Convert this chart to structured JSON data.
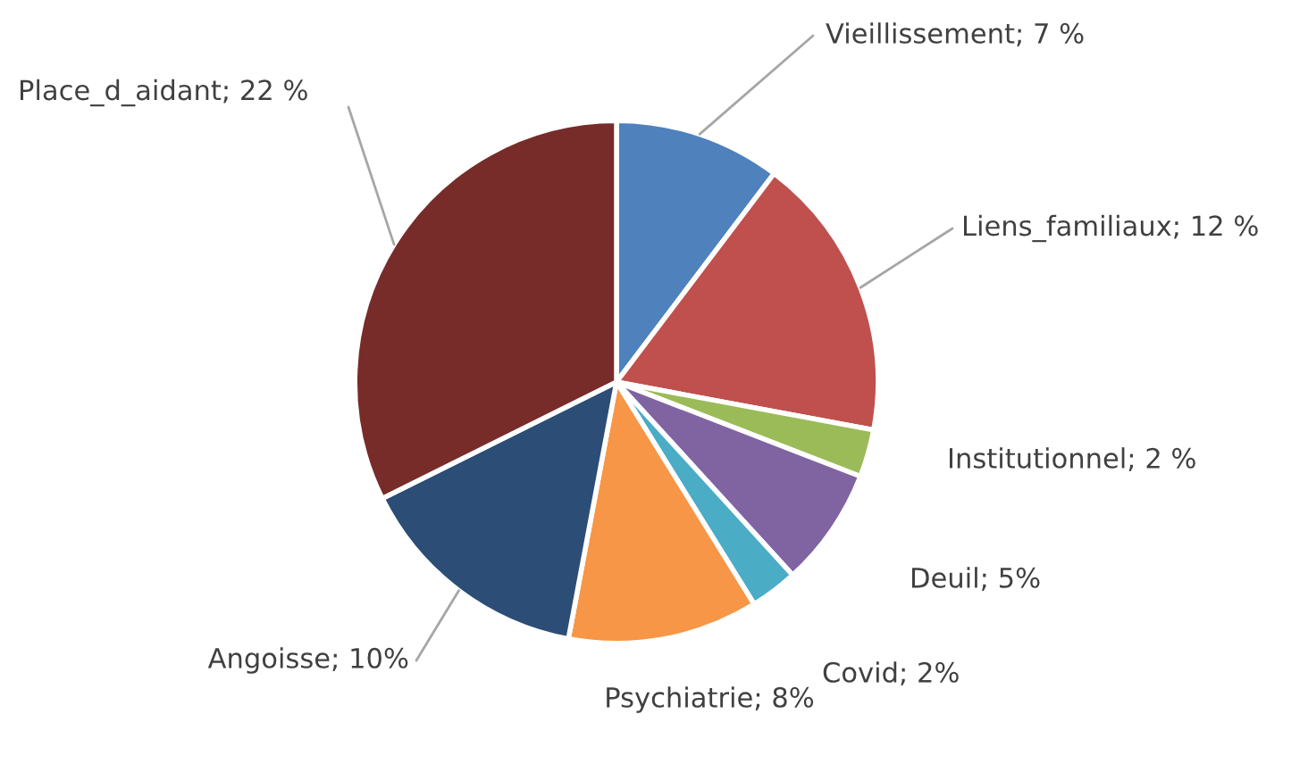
{
  "chart_data": {
    "type": "pie",
    "categories": [
      "Vieillissement",
      "Liens_familiaux",
      "Institutionnel",
      "Deuil",
      "Covid",
      "Psychiatrie",
      "Angoisse",
      "Place_d_aidant"
    ],
    "values": [
      7,
      12,
      2,
      5,
      2,
      8,
      10,
      22
    ],
    "value_labels": [
      "7 %",
      "12 %",
      "2 %",
      "5%",
      "2%",
      "8%",
      "10%",
      "22 %"
    ],
    "colors": [
      "#4f81bd",
      "#c0504d",
      "#9bbb59",
      "#8064a2",
      "#4bacc6",
      "#f79646",
      "#2c4d75",
      "#772c2a"
    ]
  }
}
